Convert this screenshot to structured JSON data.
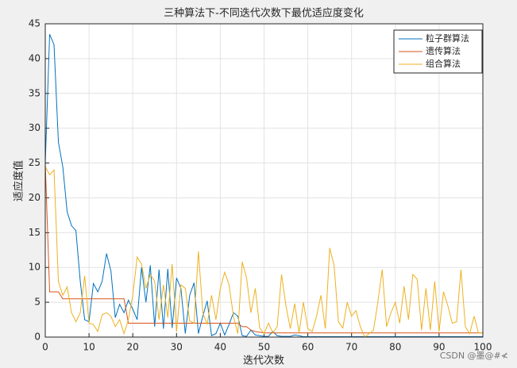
{
  "chart_data": {
    "type": "line",
    "title": "三种算法下-不同迭代次数下最优适应度变化",
    "xlabel": "迭代次数",
    "ylabel": "适应度值",
    "x": [
      0,
      1,
      2,
      3,
      4,
      5,
      6,
      7,
      8,
      9,
      10,
      11,
      12,
      13,
      14,
      15,
      16,
      17,
      18,
      19,
      20,
      21,
      22,
      23,
      24,
      25,
      26,
      27,
      28,
      29,
      30,
      31,
      32,
      33,
      34,
      35,
      36,
      37,
      38,
      39,
      40,
      41,
      42,
      43,
      44,
      45,
      46,
      47,
      48,
      49,
      50,
      51,
      52,
      53,
      54,
      55,
      56,
      57,
      58,
      59,
      60,
      61,
      62,
      63,
      64,
      65,
      66,
      67,
      68,
      69,
      70,
      71,
      72,
      73,
      74,
      75,
      76,
      77,
      78,
      79,
      80,
      81,
      82,
      83,
      84,
      85,
      86,
      87,
      88,
      89,
      90,
      91,
      92,
      93,
      94,
      95,
      96,
      97,
      98,
      99,
      100
    ],
    "series": [
      {
        "name": "粒子群算法",
        "color": "#0072BD",
        "values": [
          25,
          43.5,
          42,
          28,
          24.5,
          18,
          16,
          15.3,
          8,
          2.5,
          2.2,
          7.7,
          6.5,
          8,
          12,
          9.5,
          2.8,
          4.7,
          3.5,
          5.3,
          4,
          2.5,
          10,
          5,
          10.3,
          1.5,
          9.7,
          1.2,
          9.8,
          1.3,
          8.5,
          7,
          0.5,
          6,
          7.8,
          0.5,
          3,
          5.2,
          0.2,
          0.5,
          2,
          0.3,
          1.8,
          3.5,
          3,
          0.2,
          0.1,
          1,
          0.3,
          0.2,
          0.1,
          0.1,
          0.8,
          0.2,
          0.1,
          0.1,
          0.1,
          0.3,
          0.2,
          0.05,
          0.05,
          0.05,
          0.05,
          0.05,
          0.05,
          0.05,
          0.05,
          0.05,
          0.05,
          0.05,
          0.05,
          0.05,
          0.05,
          0.05,
          0.05,
          0.05,
          0.05,
          0.05,
          0.05,
          0.05,
          0.05,
          0.05,
          0.05,
          0.05,
          0.05,
          0.05,
          0.05,
          0.05,
          0.05,
          0.05,
          0.05,
          0.05,
          0.05,
          0.05,
          0.05,
          0.05,
          0.05,
          0.05,
          0.05,
          0.05,
          0.05
        ]
      },
      {
        "name": "遗传算法",
        "color": "#D95319",
        "values": [
          25,
          6.5,
          6.5,
          6.5,
          5.5,
          5.5,
          5.5,
          5.5,
          5.5,
          5.5,
          5.5,
          5.5,
          5.5,
          5.5,
          5.5,
          5.5,
          5.5,
          5.5,
          5.5,
          2,
          2,
          2,
          2,
          2,
          2,
          2,
          2,
          2,
          2,
          2,
          2,
          2,
          2,
          2,
          2,
          2,
          2,
          2,
          2,
          2,
          2,
          2,
          2,
          2,
          2,
          1.5,
          1.5,
          1,
          0.8,
          0.7,
          0.6,
          0.6,
          0.6,
          0.6,
          0.6,
          0.6,
          0.6,
          0.6,
          0.6,
          0.6,
          0.6,
          0.6,
          0.6,
          0.6,
          0.6,
          0.6,
          0.6,
          0.6,
          0.6,
          0.6,
          0.6,
          0.6,
          0.6,
          0.6,
          0.6,
          0.6,
          0.6,
          0.6,
          0.6,
          0.6,
          0.6,
          0.6,
          0.6,
          0.6,
          0.6,
          0.6,
          0.6,
          0.6,
          0.6,
          0.6,
          0.6,
          0.6,
          0.6,
          0.6,
          0.6,
          0.6,
          0.6,
          0.6,
          0.6,
          0.6,
          0.6
        ]
      },
      {
        "name": "组合算法",
        "color": "#EDB120",
        "values": [
          24.5,
          23.3,
          24,
          8,
          6,
          7.2,
          3.5,
          2.2,
          3.5,
          8.8,
          2,
          1.8,
          0.8,
          3.2,
          3.5,
          3,
          1.5,
          2.5,
          0.5,
          2.5,
          6,
          11.5,
          10.5,
          7,
          9,
          8,
          2.5,
          7.5,
          2.8,
          10.5,
          0.8,
          7.5,
          7,
          2.3,
          2,
          12.3,
          3.5,
          1.8,
          6,
          2.5,
          7,
          9.3,
          7.5,
          3,
          0.5,
          10.8,
          8.5,
          3.5,
          7,
          1.3,
          0.5,
          2,
          0.6,
          1.5,
          9,
          4.5,
          1.2,
          4.8,
          0.6,
          5,
          1.2,
          0.8,
          3,
          6,
          1.2,
          12.8,
          10.3,
          2.2,
          1.3,
          5,
          3,
          3.8,
          1.5,
          0,
          0.5,
          1,
          5,
          9.7,
          1.5,
          3.5,
          5,
          2,
          7.3,
          2.5,
          9,
          8.3,
          1,
          7,
          1,
          8,
          0.8,
          6.5,
          4.5,
          2,
          2.2,
          9.7,
          1.5,
          0.5,
          3,
          0.6,
          0.6
        ]
      }
    ],
    "xlim": [
      0,
      100
    ],
    "xticks": [
      0,
      10,
      20,
      30,
      40,
      50,
      60,
      70,
      80,
      90,
      100
    ],
    "ylim": [
      0,
      45
    ],
    "yticks": [
      0,
      5,
      10,
      15,
      20,
      25,
      30,
      35,
      40,
      45
    ],
    "grid": true,
    "legend": "northeast"
  },
  "watermark": "CSDN @墨@#≮"
}
